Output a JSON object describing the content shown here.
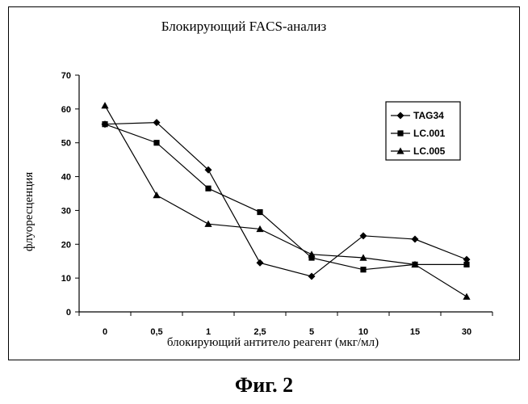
{
  "chart_data": {
    "type": "line",
    "title": "Блокирующий FACS-анализ",
    "xlabel": "блокирующий антитело реагент (мкг/мл)",
    "ylabel": "флуоресценция",
    "categories": [
      "0",
      "0,5",
      "1",
      "2,5",
      "5",
      "10",
      "15",
      "30"
    ],
    "ylim": [
      0,
      70
    ],
    "yticks": [
      0,
      10,
      20,
      30,
      40,
      50,
      60,
      70
    ],
    "grid": false,
    "legend_position": "right",
    "series": [
      {
        "name": "TAG34",
        "marker": "diamond",
        "values": [
          55.5,
          56,
          42,
          14.5,
          10.5,
          22.5,
          21.5,
          15.5
        ]
      },
      {
        "name": "LC.001",
        "marker": "square",
        "values": [
          55.5,
          50,
          36.5,
          29.5,
          16,
          12.5,
          14,
          14
        ]
      },
      {
        "name": "LC.005",
        "marker": "triangle",
        "values": [
          61,
          34.5,
          26,
          24.5,
          17,
          16,
          14,
          4.5
        ]
      }
    ]
  },
  "caption": "Фиг. 2"
}
